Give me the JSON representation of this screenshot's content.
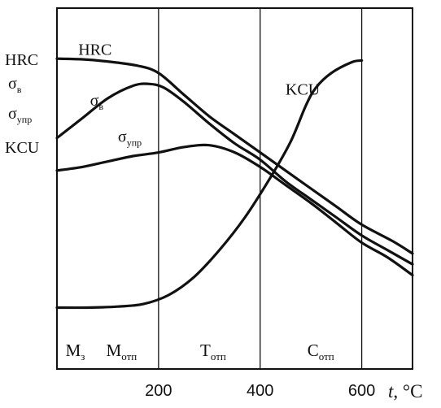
{
  "chart_data": {
    "type": "line",
    "xlabel_var": "t",
    "xlabel_unit": ", °C",
    "xlim": [
      0,
      700
    ],
    "ylim": [
      0,
      100
    ],
    "x_ticks": [
      200,
      400,
      600
    ],
    "grid": "vertical lines at 200, 400, 600",
    "ylabels": [
      "HRC",
      "σв",
      "σупр",
      "KCU"
    ],
    "zones": [
      {
        "base": "M",
        "sub": "з",
        "x": 17
      },
      {
        "base": "M",
        "sub": "отп",
        "x": 97
      },
      {
        "base": "T",
        "sub": "отп",
        "x": 282
      },
      {
        "base": "C",
        "sub": "отп",
        "x": 493
      }
    ],
    "series": [
      {
        "name": "HRC",
        "label": {
          "base": "HRC",
          "sub": "",
          "x": 42,
          "y": 87
        },
        "points": [
          [
            0,
            86
          ],
          [
            50,
            85.8
          ],
          [
            100,
            85.2
          ],
          [
            160,
            84
          ],
          [
            200,
            82
          ],
          [
            250,
            76
          ],
          [
            300,
            70
          ],
          [
            350,
            65
          ],
          [
            400,
            60
          ],
          [
            450,
            55
          ],
          [
            500,
            50
          ],
          [
            550,
            45
          ],
          [
            600,
            40
          ],
          [
            660,
            35.5
          ],
          [
            700,
            32
          ]
        ]
      },
      {
        "name": "σв",
        "label": {
          "base": "σ",
          "sub": "в",
          "x": 65,
          "y": 73
        },
        "points": [
          [
            0,
            64
          ],
          [
            50,
            69.5
          ],
          [
            100,
            75
          ],
          [
            150,
            78.5
          ],
          [
            180,
            79
          ],
          [
            210,
            78
          ],
          [
            250,
            74
          ],
          [
            300,
            68
          ],
          [
            350,
            62.5
          ],
          [
            400,
            58
          ],
          [
            450,
            52
          ],
          [
            500,
            47
          ],
          [
            550,
            42
          ],
          [
            600,
            37
          ],
          [
            650,
            33
          ],
          [
            700,
            29
          ]
        ]
      },
      {
        "name": "σупр",
        "label": {
          "base": "σ",
          "sub": "упр",
          "x": 120,
          "y": 63
        },
        "points": [
          [
            0,
            55
          ],
          [
            50,
            56
          ],
          [
            100,
            57.5
          ],
          [
            150,
            59
          ],
          [
            200,
            60
          ],
          [
            250,
            61.5
          ],
          [
            300,
            62
          ],
          [
            350,
            60
          ],
          [
            400,
            56
          ],
          [
            450,
            51
          ],
          [
            500,
            46
          ],
          [
            550,
            40.5
          ],
          [
            600,
            35
          ],
          [
            650,
            31
          ],
          [
            700,
            26
          ]
        ]
      },
      {
        "name": "KCU",
        "label": {
          "base": "KCU",
          "sub": "",
          "x": 450,
          "y": 76
        },
        "points": [
          [
            0,
            17
          ],
          [
            60,
            17
          ],
          [
            120,
            17.3
          ],
          [
            170,
            18
          ],
          [
            220,
            20.5
          ],
          [
            270,
            25.5
          ],
          [
            320,
            33
          ],
          [
            370,
            42
          ],
          [
            420,
            53
          ],
          [
            460,
            63
          ],
          [
            490,
            73
          ],
          [
            510,
            78
          ],
          [
            540,
            82
          ],
          [
            580,
            85
          ],
          [
            600,
            85.5
          ]
        ]
      }
    ]
  }
}
